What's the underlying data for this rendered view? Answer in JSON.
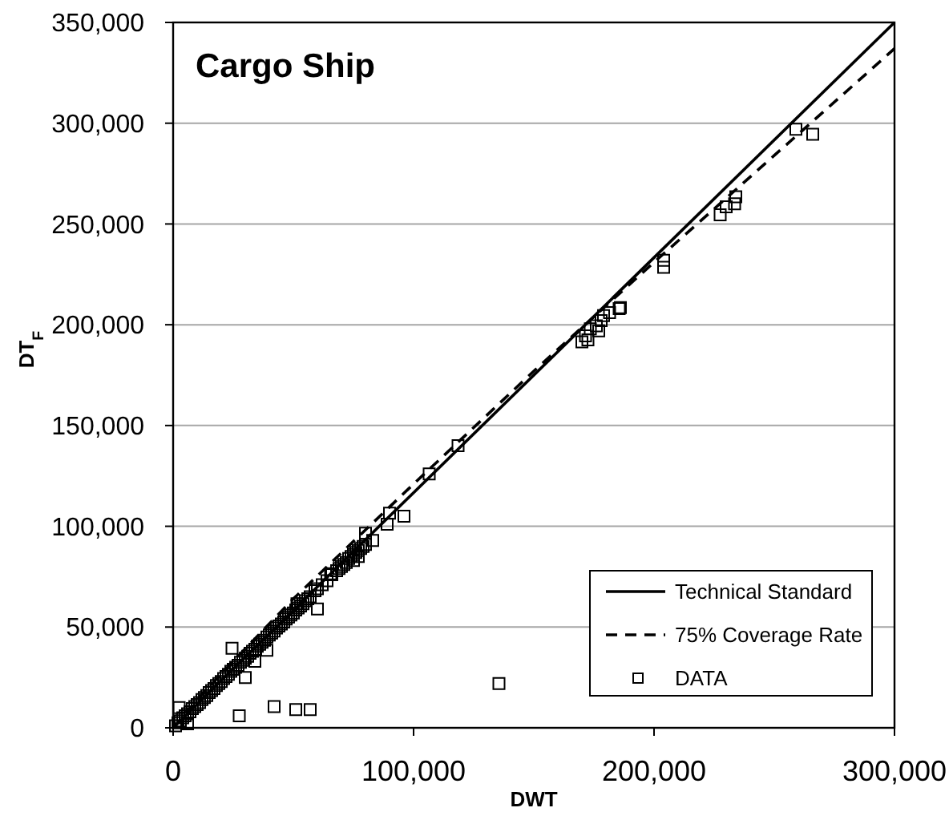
{
  "chart_data": {
    "type": "scatter",
    "title": "Cargo Ship",
    "xlabel": "DWT",
    "ylabel": "DT$_{F}$",
    "xlim": [
      0,
      300000
    ],
    "ylim": [
      0,
      350000
    ],
    "xticks": [
      0,
      {
        "value": 100000,
        "label": "100,000"
      },
      {
        "value": 200000,
        "label": "200,000"
      },
      {
        "value": 300000,
        "label": "300,000"
      }
    ],
    "yticks": [
      0,
      {
        "value": 50000,
        "label": "50,000"
      },
      {
        "value": 100000,
        "label": "100,000"
      },
      {
        "value": 150000,
        "label": "150,000"
      },
      {
        "value": 200000,
        "label": "200,000"
      },
      {
        "value": 250000,
        "label": "250,000"
      },
      {
        "value": 300000,
        "label": "300,000"
      },
      {
        "value": 350000,
        "label": "350,000"
      }
    ],
    "grid": "y",
    "legend": "bottom right",
    "marker": "square",
    "series": [
      {
        "name": "Technical Standard",
        "type": "line",
        "color": "#000000",
        "line_style": "solid",
        "marker": "none",
        "x": [
          0,
          300000
        ],
        "values": [
          0,
          350000
        ]
      },
      {
        "name": "75% Coverage Rate",
        "type": "line",
        "color": "#000000",
        "line_style": "dashed",
        "marker": "none",
        "x": [
          0,
          10000,
          25000,
          50000,
          100000,
          150000,
          200000,
          250000,
          300000
        ],
        "values": [
          0,
          14000,
          33000,
          64000,
          121000,
          177000,
          231000,
          284000,
          337000
        ]
      },
      {
        "name": "DATA",
        "color": "#000000",
        "x": [
          1000,
          2000,
          2500,
          3000,
          4000,
          5000,
          6000,
          6000,
          7000,
          8000,
          9000,
          10000,
          11000,
          12000,
          13000,
          14000,
          15000,
          16000,
          17000,
          18000,
          19000,
          20000,
          21000,
          22000,
          23000,
          24000,
          24500,
          25000,
          26000,
          27000,
          27500,
          28000,
          29000,
          30000,
          30000,
          31000,
          32000,
          33000,
          34000,
          34000,
          35000,
          36000,
          37000,
          38000,
          39000,
          39000,
          40000,
          41000,
          42000,
          42000,
          43000,
          44000,
          45000,
          46000,
          47000,
          48000,
          49000,
          50000,
          51000,
          51000,
          51500,
          52000,
          53000,
          54000,
          55000,
          56000,
          57000,
          57000,
          59000,
          60000,
          60000,
          62000,
          64000,
          65500,
          66000,
          68000,
          69000,
          70000,
          71000,
          72000,
          73000,
          74000,
          75000,
          75000,
          76000,
          77000,
          77000,
          78000,
          79000,
          80000,
          80000,
          83000,
          89000,
          90000,
          96000,
          106500,
          118500,
          135500,
          170000,
          171500,
          172500,
          173500,
          176000,
          177000,
          178000,
          179000,
          181500,
          185500,
          186000,
          204000,
          204000,
          227500,
          230000,
          233500,
          234000,
          259000,
          266000
        ],
        "values": [
          1000,
          2500,
          10000,
          3500,
          5000,
          6000,
          2000,
          7000,
          8000,
          9500,
          10500,
          11500,
          12500,
          14000,
          15000,
          16000,
          17500,
          18500,
          19500,
          21000,
          22000,
          23000,
          24500,
          25500,
          26500,
          28000,
          39500,
          29000,
          30000,
          31000,
          6000,
          32500,
          33500,
          25000,
          34500,
          35500,
          37000,
          38000,
          39000,
          33000,
          40500,
          41500,
          42500,
          43500,
          45000,
          38500,
          46000,
          47000,
          48000,
          10500,
          49500,
          50500,
          51500,
          52500,
          54000,
          55000,
          56000,
          57000,
          58500,
          9000,
          61500,
          59500,
          60500,
          61500,
          63000,
          64000,
          65000,
          9000,
          68000,
          59000,
          69000,
          71000,
          73000,
          76500,
          76000,
          78000,
          79000,
          80000,
          81000,
          82000,
          84000,
          85000,
          83000,
          86000,
          87000,
          85000,
          88000,
          89000,
          90000,
          91000,
          96500,
          93000,
          101000,
          106500,
          105000,
          126000,
          140000,
          22000,
          191500,
          194500,
          192500,
          198000,
          199500,
          197000,
          202000,
          204500,
          206000,
          208000,
          208500,
          232000,
          228500,
          254500,
          258500,
          260000,
          263500,
          297000,
          294500
        ]
      }
    ]
  }
}
